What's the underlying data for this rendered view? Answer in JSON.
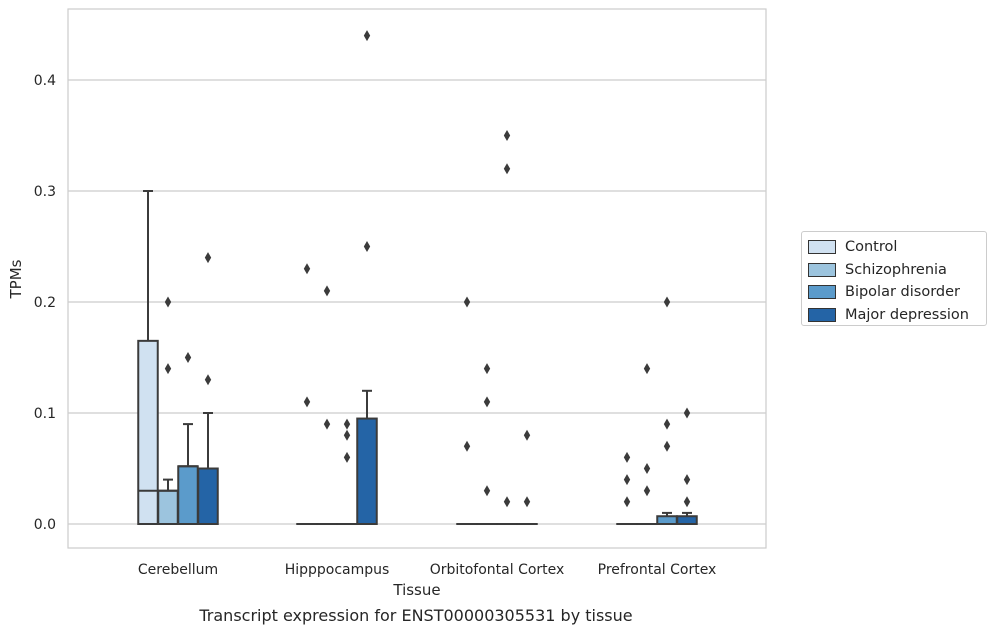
{
  "chart_data": {
    "type": "box",
    "xlabel": "Tissue",
    "ylabel": "TPMs",
    "caption": "Transcript expression for ENST00000305531 by tissue",
    "ylim": [
      -0.021,
      0.465
    ],
    "yticks": [
      "0.0",
      "0.1",
      "0.2",
      "0.3",
      "0.4"
    ],
    "grid": true,
    "legend_position": "right",
    "categories": [
      "Cerebellum",
      "Hipppocampus",
      "Orbitofontal Cortex",
      "Prefrontal Cortex"
    ],
    "series": [
      {
        "name": "Control",
        "color": "#d0e1f1",
        "boxes": [
          {
            "q1": 0.0,
            "median": 0.03,
            "q3": 0.165,
            "whisker_low": 0.0,
            "whisker_high": 0.3,
            "outliers": []
          },
          {
            "q1": 0.0,
            "median": 0.0,
            "q3": 0.0,
            "whisker_low": 0.0,
            "whisker_high": 0.0,
            "outliers": [
              0.23,
              0.11
            ]
          },
          {
            "q1": 0.0,
            "median": 0.0,
            "q3": 0.0,
            "whisker_low": 0.0,
            "whisker_high": 0.0,
            "outliers": [
              0.2,
              0.07
            ]
          },
          {
            "q1": 0.0,
            "median": 0.0,
            "q3": 0.0,
            "whisker_low": 0.0,
            "whisker_high": 0.0,
            "outliers": [
              0.06,
              0.04,
              0.02
            ]
          }
        ]
      },
      {
        "name": "Schizophrenia",
        "color": "#9cc4de",
        "boxes": [
          {
            "q1": 0.0,
            "median": 0.03,
            "q3": 0.03,
            "whisker_low": 0.0,
            "whisker_high": 0.04,
            "outliers": [
              0.2,
              0.14
            ]
          },
          {
            "q1": 0.0,
            "median": 0.0,
            "q3": 0.0,
            "whisker_low": 0.0,
            "whisker_high": 0.0,
            "outliers": [
              0.21,
              0.09
            ]
          },
          {
            "q1": 0.0,
            "median": 0.0,
            "q3": 0.0,
            "whisker_low": 0.0,
            "whisker_high": 0.0,
            "outliers": [
              0.14,
              0.11,
              0.03
            ]
          },
          {
            "q1": 0.0,
            "median": 0.0,
            "q3": 0.0,
            "whisker_low": 0.0,
            "whisker_high": 0.0,
            "outliers": [
              0.14,
              0.05,
              0.03
            ]
          }
        ]
      },
      {
        "name": "Bipolar disorder",
        "color": "#5b9bcb",
        "boxes": [
          {
            "q1": 0.0,
            "median": 0.052,
            "q3": 0.052,
            "whisker_low": 0.0,
            "whisker_high": 0.09,
            "outliers": [
              0.15
            ]
          },
          {
            "q1": 0.0,
            "median": 0.0,
            "q3": 0.0,
            "whisker_low": 0.0,
            "whisker_high": 0.0,
            "outliers": [
              0.09,
              0.08,
              0.06
            ]
          },
          {
            "q1": 0.0,
            "median": 0.0,
            "q3": 0.0,
            "whisker_low": 0.0,
            "whisker_high": 0.0,
            "outliers": [
              0.35,
              0.32,
              0.02
            ]
          },
          {
            "q1": 0.0,
            "median": 0.0,
            "q3": 0.007,
            "whisker_low": 0.0,
            "whisker_high": 0.01,
            "outliers": [
              0.2,
              0.09,
              0.07
            ]
          }
        ]
      },
      {
        "name": "Major depression",
        "color": "#2464a6",
        "boxes": [
          {
            "q1": 0.0,
            "median": 0.05,
            "q3": 0.05,
            "whisker_low": 0.0,
            "whisker_high": 0.1,
            "outliers": [
              0.24,
              0.13
            ]
          },
          {
            "q1": 0.0,
            "median": 0.0,
            "q3": 0.095,
            "whisker_low": 0.0,
            "whisker_high": 0.12,
            "outliers": [
              0.44,
              0.25
            ]
          },
          {
            "q1": 0.0,
            "median": 0.0,
            "q3": 0.0,
            "whisker_low": 0.0,
            "whisker_high": 0.0,
            "outliers": [
              0.08,
              0.02
            ]
          },
          {
            "q1": 0.0,
            "median": 0.0,
            "q3": 0.007,
            "whisker_low": 0.0,
            "whisker_high": 0.01,
            "outliers": [
              0.1,
              0.04,
              0.02
            ]
          }
        ]
      }
    ]
  }
}
